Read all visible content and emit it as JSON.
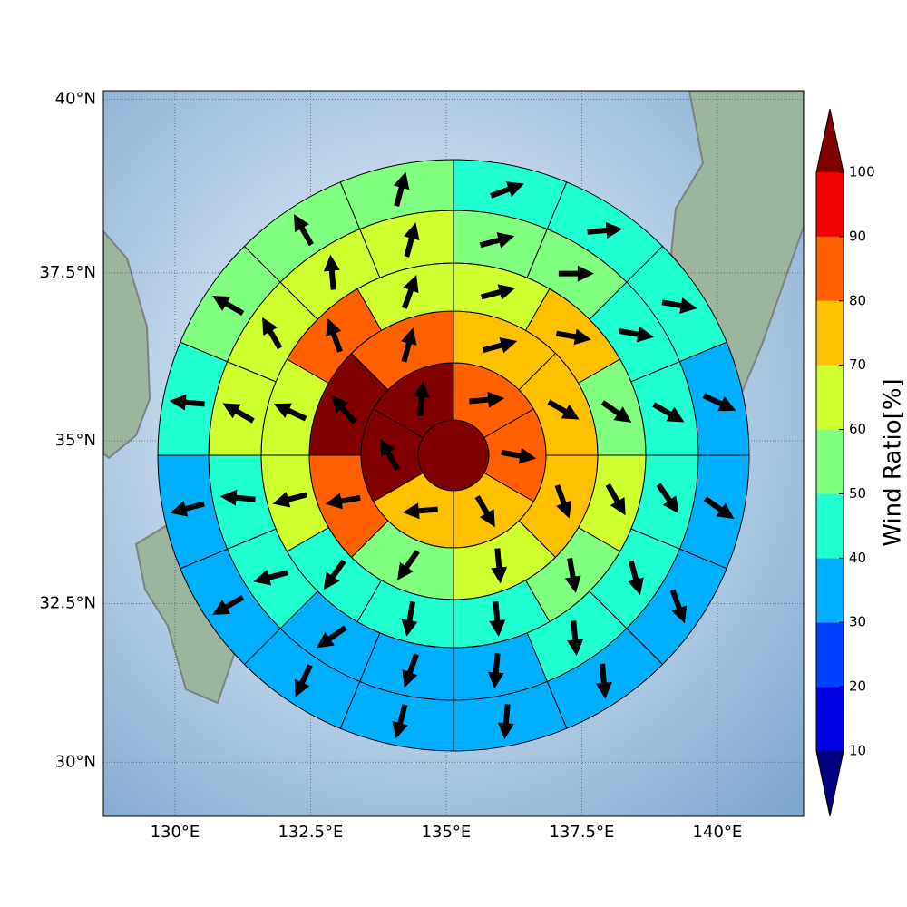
{
  "chart_data": {
    "type": "map",
    "projection": "mercator",
    "xlim": [
      128.68,
      141.59
    ],
    "ylim": [
      29.13,
      40.12
    ],
    "xticks": [
      {
        "value": 130,
        "label": "130°E"
      },
      {
        "value": 132.5,
        "label": "132.5°E"
      },
      {
        "value": 135,
        "label": "135°E"
      },
      {
        "value": 137.5,
        "label": "137.5°E"
      },
      {
        "value": 140,
        "label": "140°E"
      }
    ],
    "yticks": [
      {
        "value": 30,
        "label": "30°N"
      },
      {
        "value": 32.5,
        "label": "32.5°N"
      },
      {
        "value": 35,
        "label": "35°N"
      },
      {
        "value": 37.5,
        "label": "37.5°N"
      },
      {
        "value": 40,
        "label": "40°N"
      }
    ],
    "grid": true,
    "rings": [
      {
        "values": [
          105
        ]
      },
      {
        "values": [
          85,
          85,
          75,
          75,
          105,
          105
        ],
        "directions": [
          85,
          100,
          150,
          265,
          330,
          5
        ]
      },
      {
        "values": [
          75,
          75,
          75,
          65,
          55,
          85,
          105,
          85
        ],
        "directions": [
          75,
          120,
          160,
          175,
          215,
          260,
          320,
          15
        ]
      },
      {
        "values": [
          65,
          75,
          55,
          65,
          55,
          45,
          45,
          45,
          65,
          65,
          85,
          65
        ],
        "directions": [
          75,
          100,
          125,
          150,
          170,
          175,
          190,
          215,
          255,
          295,
          340,
          20
        ]
      },
      {
        "values": [
          55,
          55,
          45,
          45,
          45,
          45,
          45,
          35,
          35,
          35,
          45,
          45,
          65,
          65,
          65,
          65
        ],
        "directions": [
          75,
          90,
          100,
          120,
          145,
          165,
          175,
          185,
          200,
          235,
          255,
          275,
          300,
          330,
          355,
          15
        ]
      },
      {
        "values": [
          45,
          45,
          45,
          35,
          35,
          35,
          35,
          35,
          35,
          35,
          35,
          35,
          45,
          55,
          55,
          55
        ],
        "directions": [
          70,
          85,
          100,
          115,
          125,
          160,
          175,
          185,
          195,
          205,
          240,
          255,
          275,
          300,
          330,
          15
        ]
      }
    ],
    "colorbar": {
      "label": "Wind Ratio[%]",
      "levels": [
        10,
        20,
        30,
        40,
        50,
        60,
        70,
        80,
        90,
        100
      ],
      "colors": [
        "#0000e0",
        "#0040ff",
        "#00b0ff",
        "#20ffd0",
        "#80ff80",
        "#d0ff30",
        "#ffc000",
        "#ff6000",
        "#f00000"
      ],
      "under_color": "#000080",
      "over_color": "#800000"
    }
  }
}
